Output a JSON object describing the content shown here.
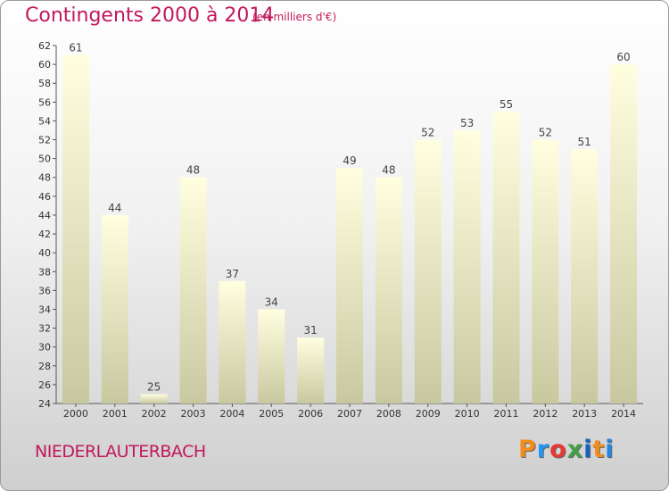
{
  "header": {
    "title": "Contingents 2000 à 2014",
    "subtitle": "(en milliers d'€)"
  },
  "footer": {
    "city": "NIEDERLAUTERBACH",
    "logo_letters": [
      "P",
      "r",
      "o",
      "x",
      "i",
      "t",
      "i"
    ],
    "logo_colors": [
      "#f28c1c",
      "#2196f3",
      "#e53935",
      "#43a047",
      "#1565c0",
      "#f28c1c",
      "#1e88e5"
    ]
  },
  "colors": {
    "accent": "#c2185b",
    "bar_top": "#ffffe0",
    "bar_bottom": "#c8c8a0"
  },
  "chart_data": {
    "type": "bar",
    "categories": [
      "2000",
      "2001",
      "2002",
      "2003",
      "2004",
      "2005",
      "2006",
      "2007",
      "2008",
      "2009",
      "2010",
      "2011",
      "2012",
      "2013",
      "2014"
    ],
    "values": [
      61,
      44,
      25,
      48,
      37,
      34,
      31,
      49,
      48,
      52,
      53,
      55,
      52,
      51,
      60
    ],
    "title": "Contingents 2000 à 2014",
    "subtitle": "(en milliers d'€)",
    "ylim": [
      24,
      62
    ],
    "yticks": [
      24,
      26,
      28,
      30,
      32,
      34,
      36,
      38,
      40,
      42,
      44,
      46,
      48,
      50,
      52,
      54,
      56,
      58,
      60,
      62
    ],
    "grid": false,
    "data_labels": true
  }
}
